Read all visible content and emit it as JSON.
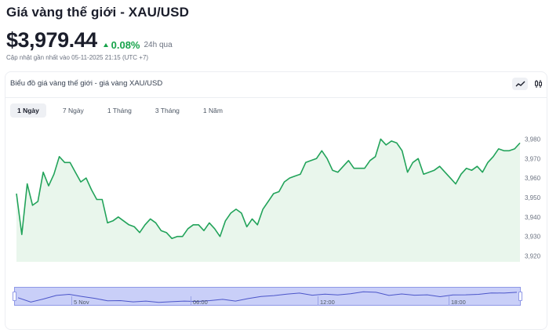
{
  "header": {
    "title": "Giá vàng thế giới - XAU/USD",
    "price": "$3,979.44",
    "change": "0.08%",
    "change_period": "24h qua",
    "updated": "Cập nhật gần nhất vào 05-11-2025 21:15 (UTC +7)"
  },
  "card": {
    "title": "Biểu đồ giá vàng thế giới - giá vàng XAU/USD",
    "tools": [
      "line-chart-icon",
      "candlestick-icon"
    ]
  },
  "tabs": [
    {
      "label": "1 Ngày",
      "active": true
    },
    {
      "label": "7 Ngày",
      "active": false
    },
    {
      "label": "1 Tháng",
      "active": false
    },
    {
      "label": "3 Tháng",
      "active": false
    },
    {
      "label": "1 Năm",
      "active": false
    }
  ],
  "navigator": {
    "labels": [
      "5 Nov",
      "06:00",
      "12:00",
      "18:00"
    ]
  },
  "colors": {
    "accent_green": "#16a34a",
    "line": "#22a35a",
    "area_fill": "#e9f6ec",
    "navigator_fill": "#c9cff8"
  },
  "chart_data": {
    "type": "area",
    "ylim": [
      3917,
      3985
    ],
    "yticks": [
      "3,920",
      "3,930",
      "3,940",
      "3,950",
      "3,960",
      "3,970",
      "3,980"
    ],
    "ytick_values": [
      3920,
      3930,
      3940,
      3950,
      3960,
      3970,
      3980
    ],
    "values": [
      3952,
      3931,
      3957,
      3946,
      3948,
      3963,
      3956,
      3962,
      3971,
      3968,
      3968,
      3963,
      3958,
      3960,
      3954,
      3949,
      3949,
      3937,
      3938,
      3940,
      3938,
      3936,
      3935,
      3932,
      3936,
      3939,
      3937,
      3933,
      3932,
      3929,
      3930,
      3930,
      3934,
      3936,
      3936,
      3933,
      3937,
      3934,
      3930,
      3938,
      3942,
      3944,
      3942,
      3935,
      3939,
      3936,
      3944,
      3948,
      3952,
      3953,
      3958,
      3960,
      3961,
      3962,
      3968,
      3969,
      3970,
      3974,
      3970,
      3964,
      3963,
      3966,
      3969,
      3965,
      3965,
      3965,
      3969,
      3971,
      3980,
      3977,
      3979,
      3978,
      3974,
      3963,
      3968,
      3970,
      3962,
      3963,
      3964,
      3966,
      3963,
      3960,
      3957,
      3962,
      3965,
      3964,
      3966,
      3963,
      3968,
      3971,
      3975,
      3974,
      3974,
      3975,
      3978
    ],
    "navigator_values": [
      3952,
      3931,
      3946,
      3963,
      3968,
      3958,
      3949,
      3937,
      3938,
      3932,
      3936,
      3930,
      3933,
      3936,
      3934,
      3938,
      3944,
      3936,
      3948,
      3958,
      3962,
      3969,
      3974,
      3964,
      3969,
      3965,
      3971,
      3980,
      3978,
      3963,
      3970,
      3964,
      3966,
      3957,
      3965,
      3966,
      3968,
      3975,
      3974,
      3978
    ]
  }
}
